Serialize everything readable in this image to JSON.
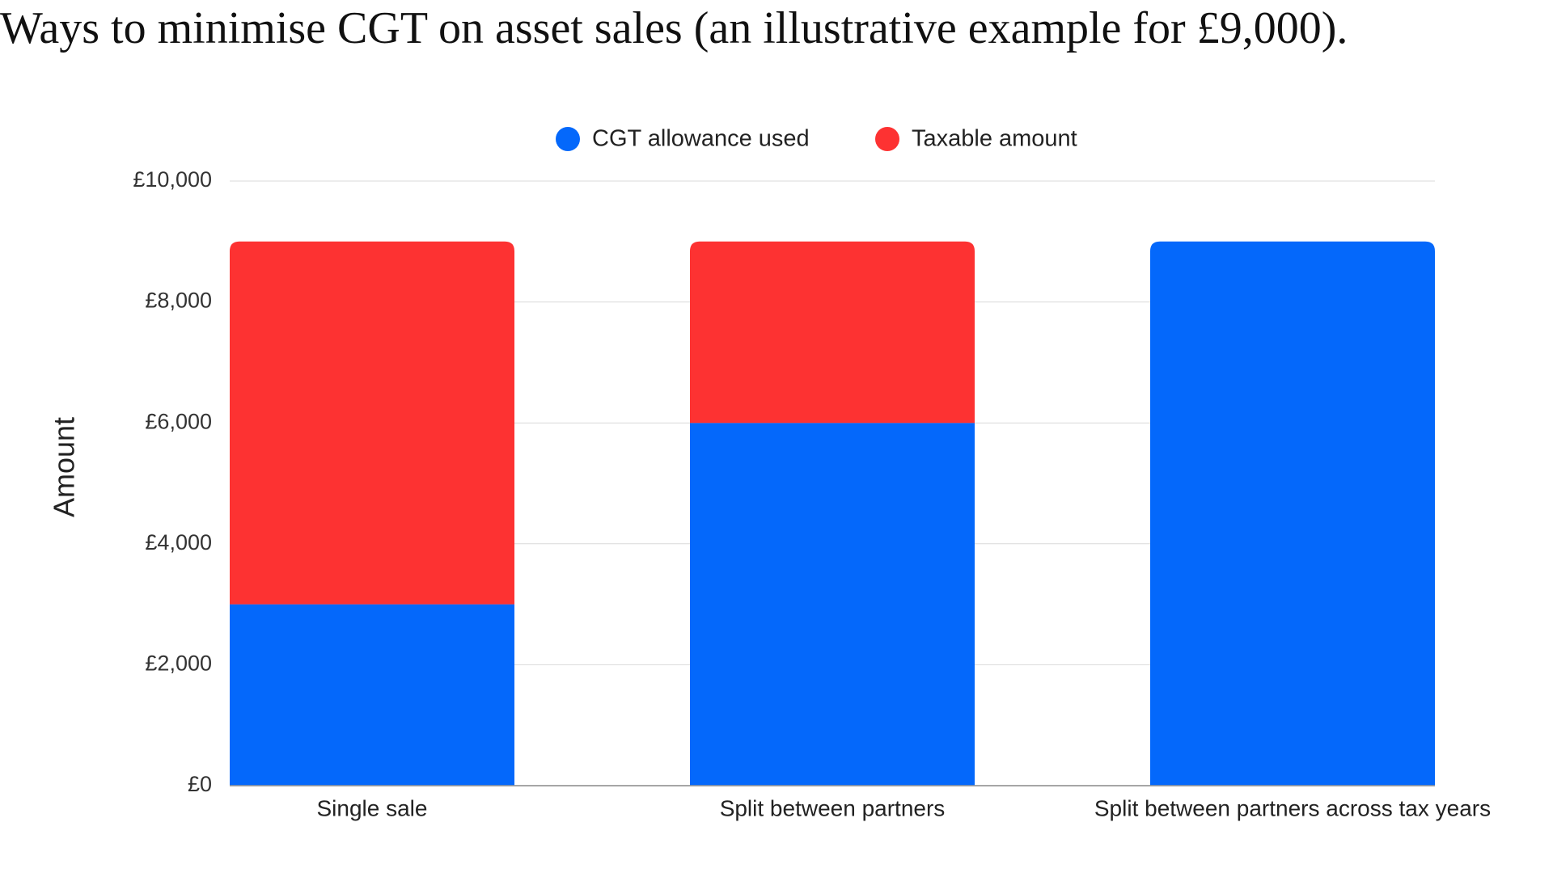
{
  "chart_data": {
    "type": "stacked-bar",
    "title": "Ways to minimise CGT on asset sales (an illustrative example for £9,000).",
    "y_label": "Amount",
    "categories": [
      "Single sale",
      "Split between partners",
      "Split between partners across tax years"
    ],
    "series": [
      {
        "name": "CGT allowance used",
        "color": "#0468fb",
        "values": [
          3000,
          6000,
          9000
        ]
      },
      {
        "name": "Taxable amount",
        "color": "#fd3232",
        "values": [
          6000,
          3000,
          0
        ]
      }
    ],
    "ylim": [
      0,
      10000
    ],
    "yticks": [
      {
        "value": 0,
        "label": "£0"
      },
      {
        "value": 2000,
        "label": "£2,000"
      },
      {
        "value": 4000,
        "label": "£4,000"
      },
      {
        "value": 6000,
        "label": "£6,000"
      },
      {
        "value": 8000,
        "label": "£8,000"
      },
      {
        "value": 10000,
        "label": "£10,000"
      }
    ],
    "grid": true,
    "legend": "top"
  }
}
